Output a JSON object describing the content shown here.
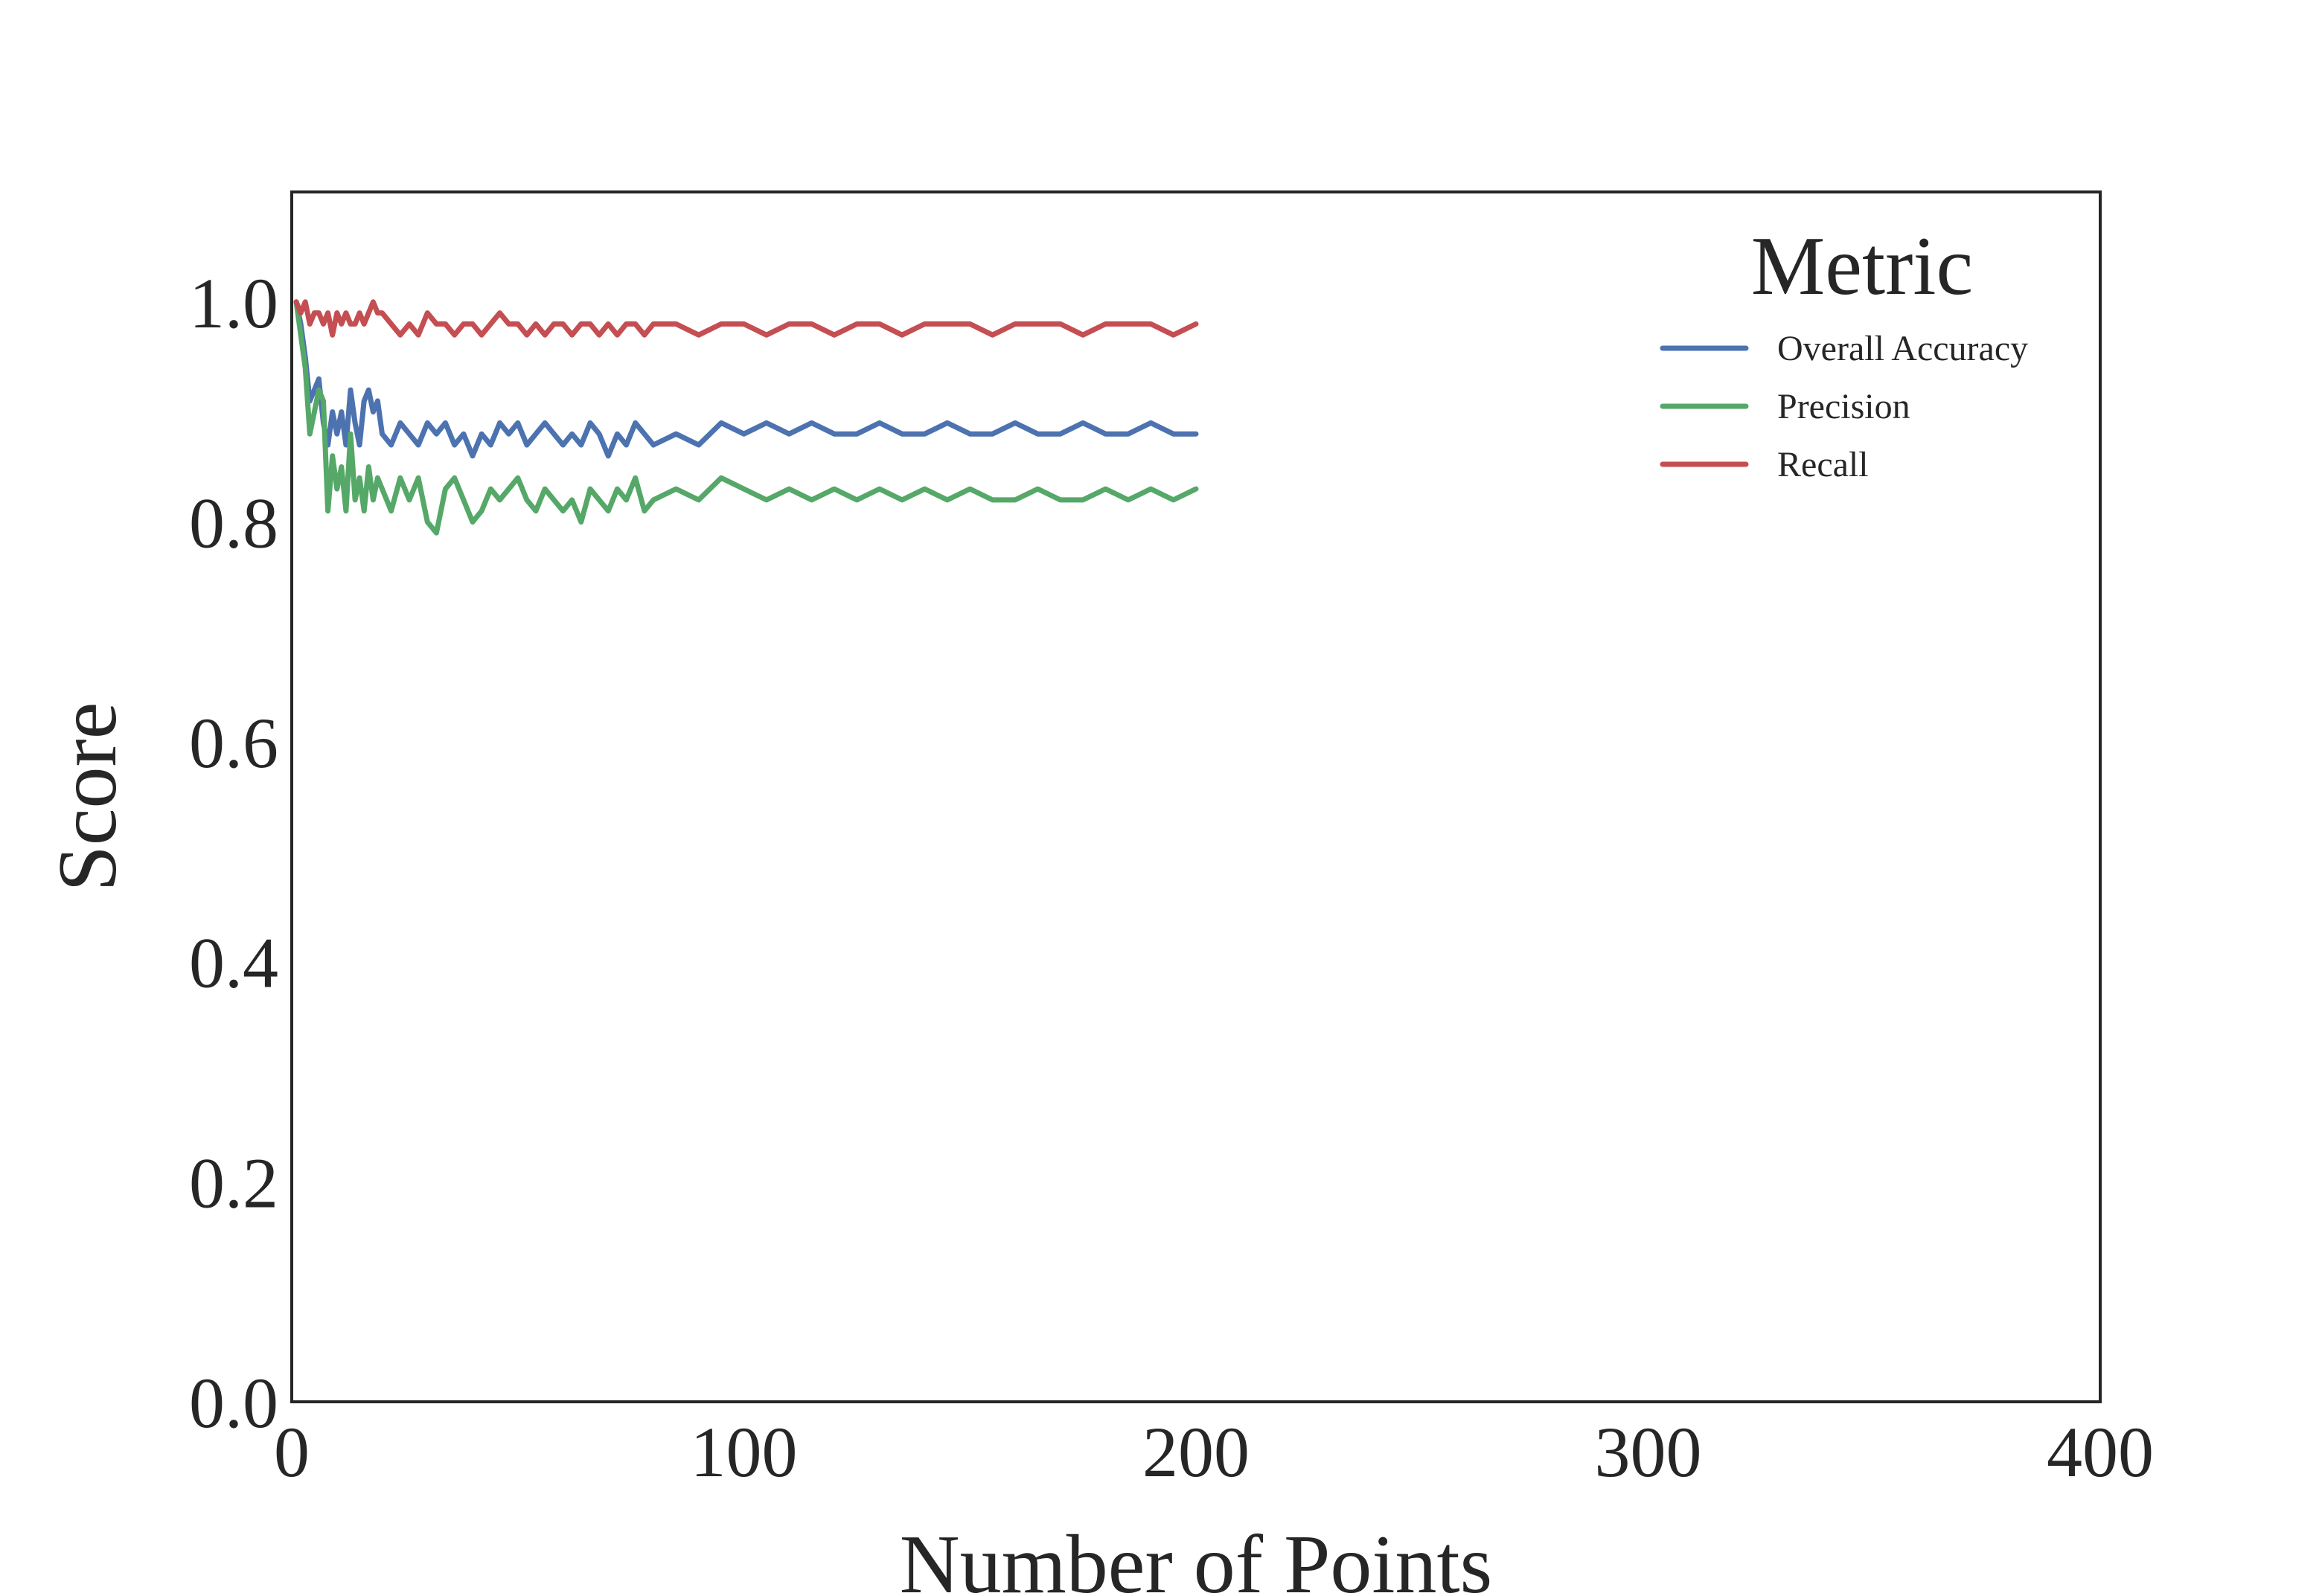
{
  "chart_data": {
    "type": "line",
    "title": "",
    "xlabel": "Number of Points",
    "ylabel": "Score",
    "xlim": [
      0,
      400
    ],
    "ylim": [
      0.0,
      1.1
    ],
    "xticks": [
      0,
      100,
      200,
      300,
      400
    ],
    "xtick_labels": [
      "0",
      "100",
      "200",
      "300",
      "400"
    ],
    "yticks": [
      0.0,
      0.2,
      0.4,
      0.6,
      0.8,
      1.0
    ],
    "ytick_labels": [
      "0.0",
      "0.2",
      "0.4",
      "0.6",
      "0.8",
      "1.0"
    ],
    "grid": false,
    "legend": {
      "title": "Metric",
      "placement": "top-right",
      "entries": [
        "Overall Accuracy",
        "Precision",
        "Recall"
      ]
    },
    "series": [
      {
        "name": "Overall Accuracy",
        "color": "#4c72b0",
        "x": [
          1,
          2,
          3,
          4,
          5,
          6,
          7,
          8,
          9,
          10,
          11,
          12,
          13,
          14,
          15,
          16,
          17,
          18,
          19,
          20,
          22,
          24,
          26,
          28,
          30,
          32,
          34,
          36,
          38,
          40,
          42,
          44,
          46,
          48,
          50,
          52,
          54,
          56,
          58,
          60,
          62,
          64,
          66,
          68,
          70,
          72,
          74,
          76,
          78,
          80,
          85,
          90,
          95,
          100,
          105,
          110,
          115,
          120,
          125,
          130,
          135,
          140,
          145,
          150,
          155,
          160,
          165,
          170,
          175,
          180,
          185,
          190,
          195,
          200
        ],
        "y": [
          1.0,
          0.98,
          0.95,
          0.91,
          0.92,
          0.93,
          0.89,
          0.87,
          0.9,
          0.88,
          0.9,
          0.87,
          0.92,
          0.89,
          0.87,
          0.91,
          0.92,
          0.9,
          0.91,
          0.88,
          0.87,
          0.89,
          0.88,
          0.87,
          0.89,
          0.88,
          0.89,
          0.87,
          0.88,
          0.86,
          0.88,
          0.87,
          0.89,
          0.88,
          0.89,
          0.87,
          0.88,
          0.89,
          0.88,
          0.87,
          0.88,
          0.87,
          0.89,
          0.88,
          0.86,
          0.88,
          0.87,
          0.89,
          0.88,
          0.87,
          0.88,
          0.87,
          0.89,
          0.88,
          0.89,
          0.88,
          0.89,
          0.88,
          0.88,
          0.89,
          0.88,
          0.88,
          0.89,
          0.88,
          0.88,
          0.89,
          0.88,
          0.88,
          0.89,
          0.88,
          0.88,
          0.89,
          0.88,
          0.88
        ]
      },
      {
        "name": "Precision",
        "color": "#55a868",
        "x": [
          1,
          2,
          3,
          4,
          5,
          6,
          7,
          8,
          9,
          10,
          11,
          12,
          13,
          14,
          15,
          16,
          17,
          18,
          19,
          20,
          22,
          24,
          26,
          28,
          30,
          32,
          34,
          36,
          38,
          40,
          42,
          44,
          46,
          48,
          50,
          52,
          54,
          56,
          58,
          60,
          62,
          64,
          66,
          68,
          70,
          72,
          74,
          76,
          78,
          80,
          85,
          90,
          95,
          100,
          105,
          110,
          115,
          120,
          125,
          130,
          135,
          140,
          145,
          150,
          155,
          160,
          165,
          170,
          175,
          180,
          185,
          190,
          195,
          200
        ],
        "y": [
          1.0,
          0.97,
          0.94,
          0.88,
          0.9,
          0.92,
          0.91,
          0.81,
          0.86,
          0.83,
          0.85,
          0.81,
          0.88,
          0.82,
          0.84,
          0.81,
          0.85,
          0.82,
          0.84,
          0.83,
          0.81,
          0.84,
          0.82,
          0.84,
          0.8,
          0.79,
          0.83,
          0.84,
          0.82,
          0.8,
          0.81,
          0.83,
          0.82,
          0.83,
          0.84,
          0.82,
          0.81,
          0.83,
          0.82,
          0.81,
          0.82,
          0.8,
          0.83,
          0.82,
          0.81,
          0.83,
          0.82,
          0.84,
          0.81,
          0.82,
          0.83,
          0.82,
          0.84,
          0.83,
          0.82,
          0.83,
          0.82,
          0.83,
          0.82,
          0.83,
          0.82,
          0.83,
          0.82,
          0.83,
          0.82,
          0.82,
          0.83,
          0.82,
          0.82,
          0.83,
          0.82,
          0.83,
          0.82,
          0.83
        ]
      },
      {
        "name": "Recall",
        "color": "#c44e52",
        "x": [
          1,
          2,
          3,
          4,
          5,
          6,
          7,
          8,
          9,
          10,
          11,
          12,
          13,
          14,
          15,
          16,
          17,
          18,
          19,
          20,
          22,
          24,
          26,
          28,
          30,
          32,
          34,
          36,
          38,
          40,
          42,
          44,
          46,
          48,
          50,
          52,
          54,
          56,
          58,
          60,
          62,
          64,
          66,
          68,
          70,
          72,
          74,
          76,
          78,
          80,
          85,
          90,
          95,
          100,
          105,
          110,
          115,
          120,
          125,
          130,
          135,
          140,
          145,
          150,
          155,
          160,
          165,
          170,
          175,
          180,
          185,
          190,
          195,
          200
        ],
        "y": [
          1.0,
          0.99,
          1.0,
          0.98,
          0.99,
          0.99,
          0.98,
          0.99,
          0.97,
          0.99,
          0.98,
          0.99,
          0.98,
          0.98,
          0.99,
          0.98,
          0.99,
          1.0,
          0.99,
          0.99,
          0.98,
          0.97,
          0.98,
          0.97,
          0.99,
          0.98,
          0.98,
          0.97,
          0.98,
          0.98,
          0.97,
          0.98,
          0.99,
          0.98,
          0.98,
          0.97,
          0.98,
          0.97,
          0.98,
          0.98,
          0.97,
          0.98,
          0.98,
          0.97,
          0.98,
          0.97,
          0.98,
          0.98,
          0.97,
          0.98,
          0.98,
          0.97,
          0.98,
          0.98,
          0.97,
          0.98,
          0.98,
          0.97,
          0.98,
          0.98,
          0.97,
          0.98,
          0.98,
          0.98,
          0.97,
          0.98,
          0.98,
          0.98,
          0.97,
          0.98,
          0.98,
          0.98,
          0.97,
          0.98
        ]
      }
    ]
  }
}
